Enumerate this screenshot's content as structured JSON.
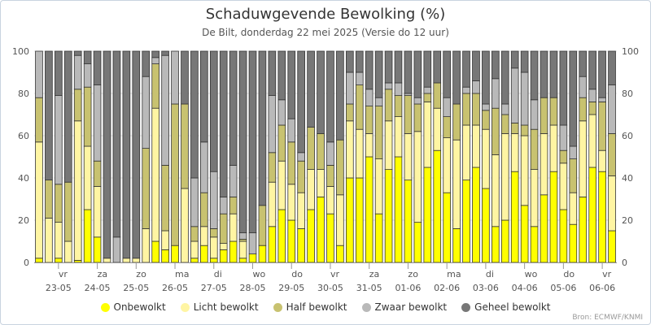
{
  "chart_data": {
    "type": "bar",
    "stacked": true,
    "title": "Schaduwgevende Bewolking (%)",
    "subtitle": "De Bilt, donderdag 22 mei 2025 (Versie do 12 uur)",
    "source": "Bron: ECMWF/KNMI",
    "ylim": [
      0,
      100
    ],
    "yticks": [
      0,
      20,
      40,
      60,
      80,
      100
    ],
    "grid": true,
    "legend_position": "bottom-center",
    "series": [
      {
        "name": "Onbewolkt",
        "color": "#ffff00"
      },
      {
        "name": "Licht bewolkt",
        "color": "#fff5a3"
      },
      {
        "name": "Half bewolkt",
        "color": "#c8c270"
      },
      {
        "name": "Zwaar bewolkt",
        "color": "#b9b9b9"
      },
      {
        "name": "Geheel bewolkt",
        "color": "#777777"
      }
    ],
    "day_labels": [
      {
        "weekday": "vr",
        "date": "23-05"
      },
      {
        "weekday": "za",
        "date": "24-05"
      },
      {
        "weekday": "zo",
        "date": "25-05"
      },
      {
        "weekday": "ma",
        "date": "26-05"
      },
      {
        "weekday": "di",
        "date": "27-05"
      },
      {
        "weekday": "wo",
        "date": "28-05"
      },
      {
        "weekday": "do",
        "date": "29-05"
      },
      {
        "weekday": "vr",
        "date": "30-05"
      },
      {
        "weekday": "za",
        "date": "31-05"
      },
      {
        "weekday": "zo",
        "date": "01-06"
      },
      {
        "weekday": "ma",
        "date": "02-06"
      },
      {
        "weekday": "di",
        "date": "03-06"
      },
      {
        "weekday": "wo",
        "date": "04-06"
      },
      {
        "weekday": "do",
        "date": "05-06"
      },
      {
        "weekday": "vr",
        "date": "06-06"
      }
    ],
    "bars": [
      [
        2,
        55,
        21,
        22,
        0
      ],
      [
        0,
        21,
        18,
        0,
        61
      ],
      [
        2,
        17,
        18,
        42,
        21
      ],
      [
        0,
        10,
        28,
        0,
        62
      ],
      [
        1,
        66,
        15,
        16,
        2
      ],
      [
        25,
        30,
        28,
        11,
        6
      ],
      [
        12,
        24,
        12,
        36,
        16
      ],
      [
        0,
        2,
        0,
        0,
        98
      ],
      [
        0,
        0,
        0,
        12,
        88
      ],
      [
        0,
        2,
        0,
        0,
        98
      ],
      [
        0,
        2,
        0,
        0,
        98
      ],
      [
        0,
        16,
        38,
        34,
        12
      ],
      [
        10,
        63,
        21,
        3,
        3
      ],
      [
        6,
        9,
        31,
        52,
        2
      ],
      [
        8,
        0,
        67,
        25,
        0
      ],
      [
        0,
        35,
        40,
        0,
        25
      ],
      [
        2,
        8,
        7,
        23,
        60
      ],
      [
        8,
        9,
        16,
        24,
        43
      ],
      [
        2,
        10,
        4,
        27,
        57
      ],
      [
        6,
        3,
        14,
        8,
        69
      ],
      [
        10,
        13,
        8,
        15,
        54
      ],
      [
        2,
        8,
        1,
        3,
        86
      ],
      [
        4,
        0,
        0,
        10,
        86
      ],
      [
        8,
        0,
        19,
        0,
        73
      ],
      [
        17,
        21,
        14,
        27,
        21
      ],
      [
        25,
        23,
        17,
        12,
        23
      ],
      [
        20,
        17,
        20,
        11,
        32
      ],
      [
        16,
        17,
        15,
        4,
        48
      ],
      [
        25,
        19,
        20,
        0,
        36
      ],
      [
        31,
        13,
        17,
        0,
        39
      ],
      [
        23,
        13,
        10,
        11,
        43
      ],
      [
        8,
        24,
        26,
        0,
        42
      ],
      [
        40,
        27,
        8,
        15,
        10
      ],
      [
        40,
        23,
        21,
        6,
        10
      ],
      [
        50,
        11,
        13,
        8,
        18
      ],
      [
        23,
        26,
        25,
        4,
        22
      ],
      [
        44,
        23,
        15,
        3,
        15
      ],
      [
        50,
        19,
        10,
        6,
        15
      ],
      [
        39,
        22,
        18,
        1,
        20
      ],
      [
        19,
        43,
        13,
        3,
        22
      ],
      [
        45,
        31,
        4,
        3,
        17
      ],
      [
        53,
        20,
        12,
        0,
        15
      ],
      [
        33,
        26,
        10,
        9,
        22
      ],
      [
        16,
        42,
        17,
        0,
        25
      ],
      [
        39,
        26,
        15,
        3,
        17
      ],
      [
        45,
        20,
        15,
        6,
        14
      ],
      [
        35,
        28,
        9,
        3,
        25
      ],
      [
        17,
        34,
        22,
        14,
        13
      ],
      [
        20,
        41,
        9,
        5,
        25
      ],
      [
        43,
        18,
        5,
        26,
        8
      ],
      [
        27,
        33,
        5,
        25,
        10
      ],
      [
        17,
        27,
        19,
        14,
        23
      ],
      [
        32,
        29,
        17,
        0,
        22
      ],
      [
        43,
        22,
        13,
        0,
        22
      ],
      [
        25,
        22,
        6,
        12,
        35
      ],
      [
        18,
        15,
        16,
        6,
        45
      ],
      [
        31,
        36,
        11,
        10,
        12
      ],
      [
        45,
        25,
        6,
        6,
        18
      ],
      [
        43,
        10,
        23,
        2,
        22
      ],
      [
        15,
        26,
        20,
        23,
        16
      ]
    ]
  }
}
